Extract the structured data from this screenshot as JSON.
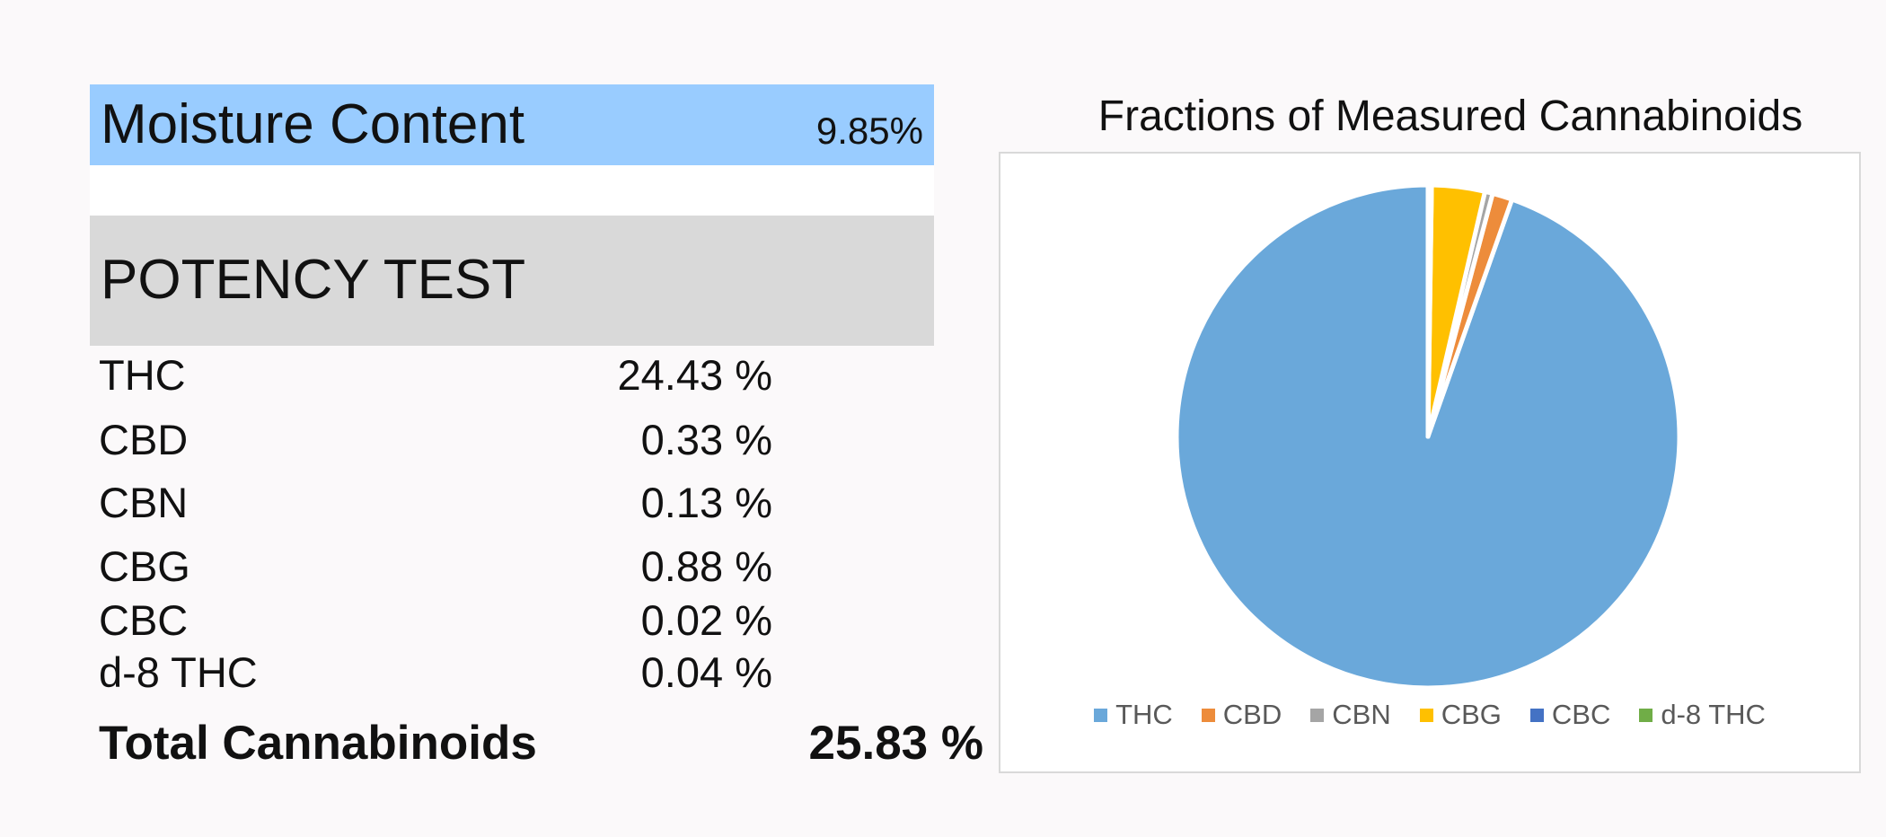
{
  "moisture": {
    "label": "Moisture Content",
    "value": "9.85%"
  },
  "potency": {
    "header": "POTENCY TEST",
    "rows": [
      {
        "name": "THC",
        "value": "24.43 %"
      },
      {
        "name": "CBD",
        "value": "0.33 %"
      },
      {
        "name": "CBN",
        "value": "0.13 %"
      },
      {
        "name": "CBG",
        "value": "0.88 %"
      },
      {
        "name": "CBC",
        "value": "0.02 %"
      },
      {
        "name": "d-8 THC",
        "value": "0.04 %"
      }
    ],
    "total": {
      "name": "Total Cannabinoids",
      "value": "25.83 %"
    }
  },
  "chart_data": {
    "type": "pie",
    "title": "Fractions of Measured Cannabinoids",
    "categories": [
      "THC",
      "CBD",
      "CBN",
      "CBG",
      "CBC",
      "d-8 THC"
    ],
    "values": [
      24.43,
      0.33,
      0.13,
      0.88,
      0.02,
      0.04
    ],
    "colors": [
      "#6aa8da",
      "#ed8c3b",
      "#a5a5a5",
      "#ffc000",
      "#4472c4",
      "#70ad47"
    ],
    "legend_position": "bottom",
    "start_angle_deg": 0,
    "direction": "counterclockwise"
  }
}
